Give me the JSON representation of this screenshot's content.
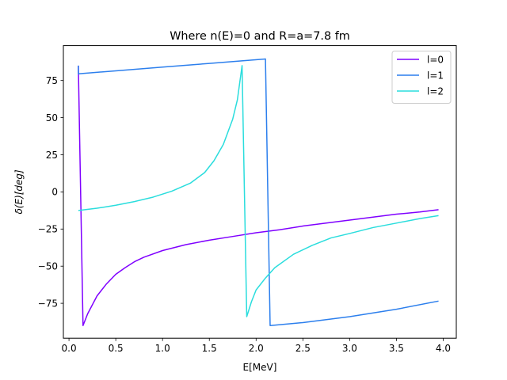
{
  "chart_data": {
    "type": "line",
    "title": "Where n(E)=0 and R=a=7.8 fm",
    "xlabel": "E[MeV]",
    "ylabel": "δ(E)[deg]",
    "xlim": [
      -0.06,
      4.14
    ],
    "ylim": [
      -98.5,
      98.5
    ],
    "xticks": [
      0.0,
      0.5,
      1.0,
      1.5,
      2.0,
      2.5,
      3.0,
      3.5,
      4.0
    ],
    "xtick_labels": [
      "0.0",
      "0.5",
      "1.0",
      "1.5",
      "2.0",
      "2.5",
      "3.0",
      "3.5",
      "4.0"
    ],
    "yticks": [
      -75,
      -50,
      -25,
      0,
      25,
      50,
      75
    ],
    "ytick_labels": [
      "−75",
      "−50",
      "−25",
      "0",
      "25",
      "50",
      "75"
    ],
    "grid": false,
    "legend_position": "top-right",
    "series": [
      {
        "name": "l=0",
        "color": "#7f00ff",
        "points": [
          [
            0.1,
            85.0
          ],
          [
            0.15,
            -90.0
          ],
          [
            0.2,
            -82.0
          ],
          [
            0.3,
            -70.0
          ],
          [
            0.4,
            -62.0
          ],
          [
            0.5,
            -55.5
          ],
          [
            0.6,
            -51.0
          ],
          [
            0.7,
            -47.0
          ],
          [
            0.8,
            -44.0
          ],
          [
            1.0,
            -39.5
          ],
          [
            1.25,
            -35.5
          ],
          [
            1.5,
            -32.5
          ],
          [
            1.75,
            -30.0
          ],
          [
            2.0,
            -27.5
          ],
          [
            2.25,
            -25.5
          ],
          [
            2.5,
            -23.0
          ],
          [
            2.75,
            -21.0
          ],
          [
            3.0,
            -19.0
          ],
          [
            3.25,
            -17.0
          ],
          [
            3.5,
            -15.0
          ],
          [
            3.75,
            -13.5
          ],
          [
            3.95,
            -12.0
          ]
        ]
      },
      {
        "name": "l=1",
        "color": "#2c7fed",
        "points": [
          [
            0.1,
            85.0
          ],
          [
            0.1,
            79.5
          ],
          [
            0.5,
            81.5
          ],
          [
            1.0,
            84.0
          ],
          [
            1.5,
            86.5
          ],
          [
            2.1,
            89.5
          ],
          [
            2.15,
            -90.0
          ],
          [
            2.5,
            -88.0
          ],
          [
            3.0,
            -84.0
          ],
          [
            3.5,
            -79.0
          ],
          [
            3.95,
            -73.5
          ]
        ]
      },
      {
        "name": "l=2",
        "color": "#2adddd",
        "points": [
          [
            0.1,
            -12.5
          ],
          [
            0.3,
            -11.0
          ],
          [
            0.5,
            -9.0
          ],
          [
            0.7,
            -6.5
          ],
          [
            0.9,
            -3.5
          ],
          [
            1.1,
            0.5
          ],
          [
            1.3,
            6.0
          ],
          [
            1.45,
            13.0
          ],
          [
            1.55,
            21.0
          ],
          [
            1.65,
            32.0
          ],
          [
            1.75,
            49.0
          ],
          [
            1.8,
            62.0
          ],
          [
            1.85,
            85.0
          ],
          [
            1.9,
            -84.0
          ],
          [
            1.95,
            -74.0
          ],
          [
            2.0,
            -66.0
          ],
          [
            2.1,
            -58.0
          ],
          [
            2.2,
            -51.0
          ],
          [
            2.4,
            -42.0
          ],
          [
            2.6,
            -36.0
          ],
          [
            2.8,
            -31.0
          ],
          [
            3.0,
            -28.0
          ],
          [
            3.25,
            -24.0
          ],
          [
            3.5,
            -21.0
          ],
          [
            3.75,
            -18.0
          ],
          [
            3.95,
            -16.0
          ]
        ]
      }
    ]
  }
}
